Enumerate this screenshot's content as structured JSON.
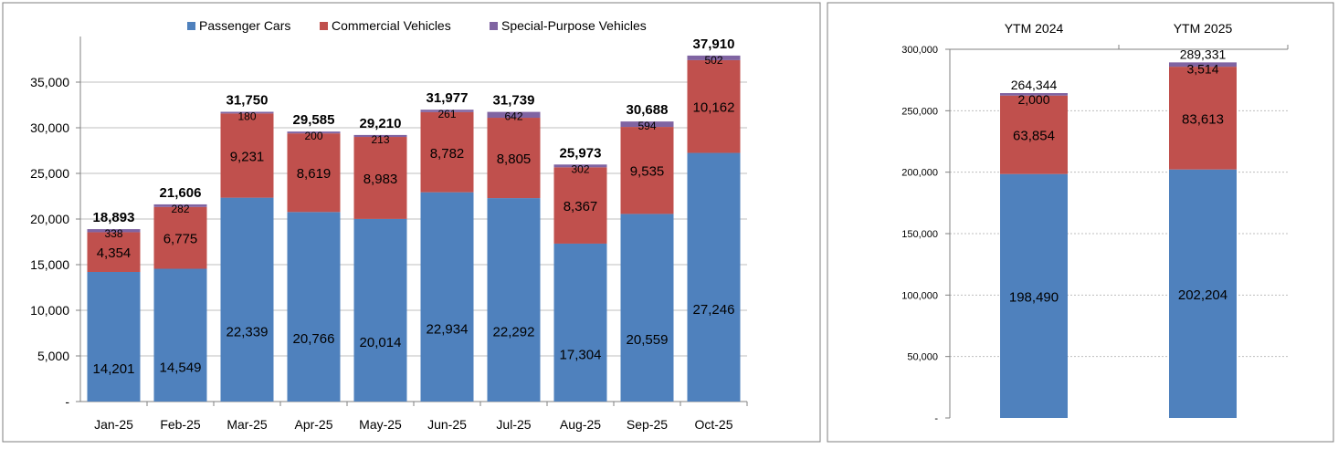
{
  "colors": {
    "passenger": "#4f81bd",
    "commercial": "#c0504d",
    "special": "#8064a2",
    "axis": "#808080",
    "grid": "#bfbfbf",
    "border": "#7f7f7f"
  },
  "chart_data": [
    {
      "type": "bar",
      "stacked": true,
      "title": "",
      "xlabel": "",
      "ylabel": "",
      "ylim": [
        0,
        40000
      ],
      "yticks": [
        0,
        5000,
        10000,
        15000,
        20000,
        25000,
        30000,
        35000
      ],
      "ytick_labels": [
        "-",
        "5,000",
        "10,000",
        "15,000",
        "20,000",
        "25,000",
        "30,000",
        "35,000"
      ],
      "legend": "top",
      "grid": true,
      "categories": [
        "Jan-25",
        "Feb-25",
        "Mar-25",
        "Apr-25",
        "May-25",
        "Jun-25",
        "Jul-25",
        "Aug-25",
        "Sep-25",
        "Oct-25"
      ],
      "series": [
        {
          "name": "Passenger Cars",
          "color_key": "passenger",
          "values": [
            14201,
            14549,
            22339,
            20766,
            20014,
            22934,
            22292,
            17304,
            20559,
            27246
          ],
          "labels": [
            "14,201",
            "14,549",
            "22,339",
            "20,766",
            "20,014",
            "22,934",
            "22,292",
            "17,304",
            "20,559",
            "27,246"
          ]
        },
        {
          "name": "Commercial Vehicles",
          "color_key": "commercial",
          "values": [
            4354,
            6775,
            9231,
            8619,
            8983,
            8782,
            8805,
            8367,
            9535,
            10162
          ],
          "labels": [
            "4,354",
            "6,775",
            "9,231",
            "8,619",
            "8,983",
            "8,782",
            "8,805",
            "8,367",
            "9,535",
            "10,162"
          ]
        },
        {
          "name": "Special-Purpose Vehicles",
          "color_key": "special",
          "values": [
            338,
            282,
            180,
            200,
            213,
            261,
            642,
            302,
            594,
            502
          ],
          "labels": [
            "338",
            "282",
            "180",
            "200",
            "213",
            "261",
            "642",
            "302",
            "594",
            "502"
          ]
        }
      ],
      "totals": [
        18893,
        21606,
        31750,
        29585,
        29210,
        31977,
        31739,
        25973,
        30688,
        37910
      ],
      "total_labels": [
        "18,893",
        "21,606",
        "31,750",
        "29,585",
        "29,210",
        "31,977",
        "31,739",
        "25,973",
        "30,688",
        "37,910"
      ]
    },
    {
      "type": "bar",
      "stacked": true,
      "title": "",
      "xlabel": "",
      "ylabel": "",
      "ylim": [
        0,
        300000
      ],
      "yticks": [
        0,
        50000,
        100000,
        150000,
        200000,
        250000,
        300000
      ],
      "ytick_labels": [
        "-",
        "50,000",
        "100,000",
        "150,000",
        "200,000",
        "250,000",
        "300,000"
      ],
      "legend": "none",
      "grid": true,
      "categories": [
        "YTM 2024",
        "YTM 2025"
      ],
      "series": [
        {
          "name": "Passenger Cars",
          "color_key": "passenger",
          "values": [
            198490,
            202204
          ],
          "labels": [
            "198,490",
            "202,204"
          ]
        },
        {
          "name": "Commercial Vehicles",
          "color_key": "commercial",
          "values": [
            63854,
            83613
          ],
          "labels": [
            "63,854",
            "83,613"
          ]
        },
        {
          "name": "Special-Purpose Vehicles",
          "color_key": "special",
          "values": [
            2000,
            3514
          ],
          "labels": [
            "2,000",
            "3,514"
          ]
        }
      ],
      "totals": [
        264344,
        289331
      ],
      "total_labels": [
        "264,344",
        "289,331"
      ]
    }
  ]
}
